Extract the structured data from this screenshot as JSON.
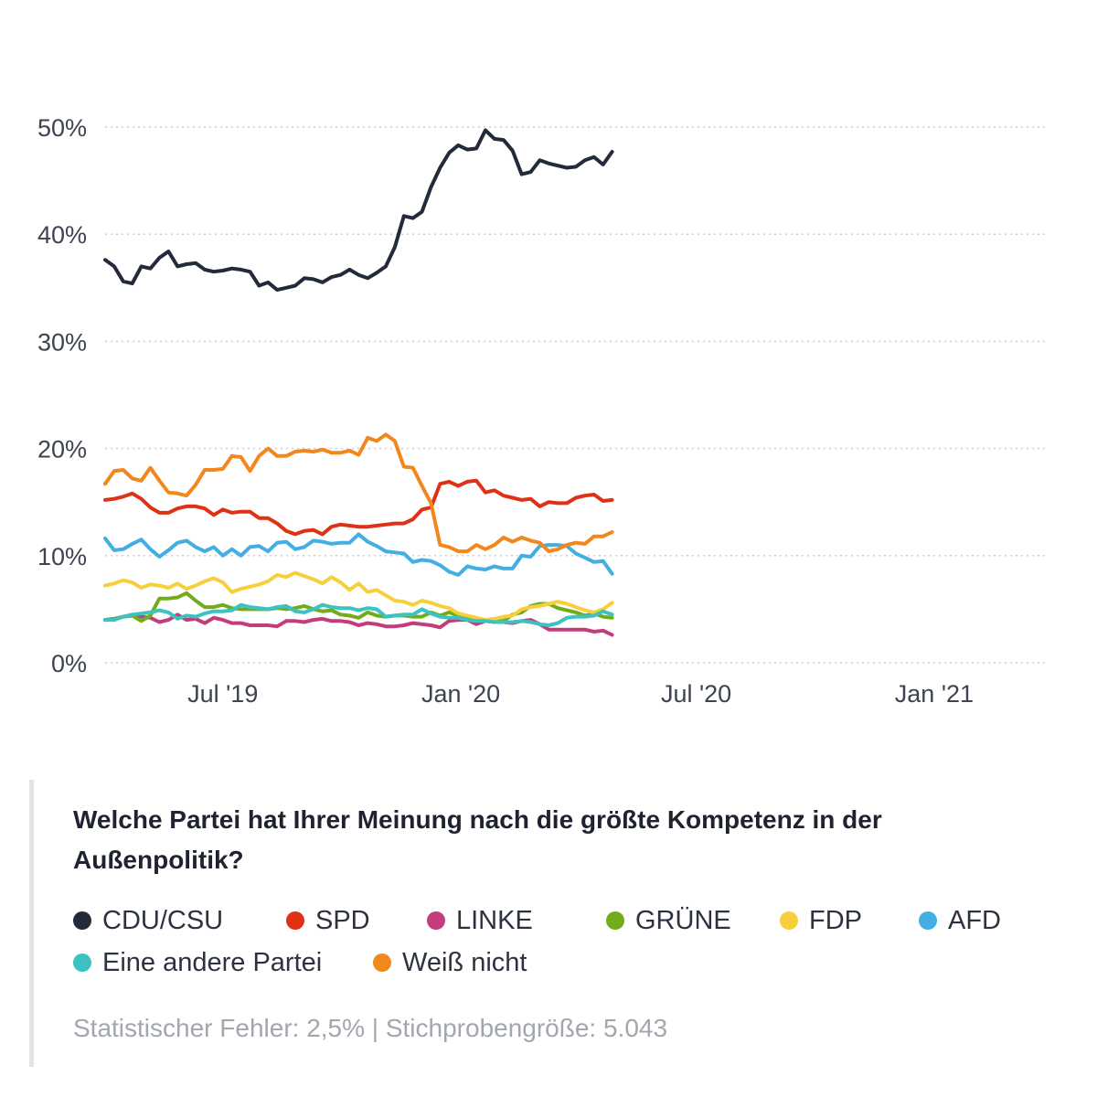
{
  "chart_data": {
    "type": "line",
    "title": "Welche Partei hat Ihrer Meinung nach die größte Kompetenz in der Außenpolitik?",
    "xlabel": "",
    "ylabel": "",
    "x_start": "2019-04-01",
    "x_step_days": 7,
    "x_ticks": [
      {
        "date": "2019-07-01",
        "label": "Jul '19"
      },
      {
        "date": "2020-01-01",
        "label": "Jan '20"
      },
      {
        "date": "2020-07-01",
        "label": "Jul '20"
      },
      {
        "date": "2021-01-01",
        "label": "Jan '21"
      }
    ],
    "x_range": [
      "2019-04-01",
      "2021-03-29"
    ],
    "y_ticks": [
      {
        "value": 0,
        "label": "0%"
      },
      {
        "value": 10,
        "label": "10%"
      },
      {
        "value": 20,
        "label": "20%"
      },
      {
        "value": 30,
        "label": "30%"
      },
      {
        "value": 40,
        "label": "40%"
      },
      {
        "value": 50,
        "label": "50%"
      }
    ],
    "ylim": [
      0,
      50
    ],
    "grid": "horizontal dotted",
    "legend_position": "bottom",
    "series": [
      {
        "name": "CDU/CSU",
        "color": "#232a3a",
        "values": [
          37.6,
          37,
          35.6,
          35.4,
          37,
          36.8,
          37.8,
          38.4,
          37,
          37.2,
          37.3,
          36.7,
          36.5,
          36.6,
          36.8,
          36.7,
          36.5,
          35.2,
          35.5,
          34.8,
          35,
          35.2,
          35.9,
          35.8,
          35.5,
          36,
          36.2,
          36.7,
          36.2,
          35.9,
          36.4,
          37,
          38.8,
          41.7,
          41.5,
          42.1,
          44.4,
          46.2,
          47.6,
          48.3,
          47.9,
          48,
          49.7,
          48.9,
          48.8,
          47.8,
          45.6,
          45.8,
          46.9,
          46.6,
          46.4,
          46.2,
          46.3,
          46.9,
          47.2,
          46.5,
          47.7
        ]
      },
      {
        "name": "SPD",
        "color": "#de3116",
        "values": [
          15.2,
          15.3,
          15.5,
          15.8,
          15.3,
          14.5,
          14,
          14,
          14.4,
          14.6,
          14.6,
          14.4,
          13.8,
          14.3,
          14,
          14.1,
          14.1,
          13.5,
          13.5,
          13,
          12.3,
          12,
          12.3,
          12.4,
          12,
          12.7,
          12.9,
          12.8,
          12.7,
          12.7,
          12.8,
          12.9,
          13,
          13,
          13.4,
          14.3,
          14.5,
          16.7,
          16.9,
          16.5,
          16.9,
          17,
          15.9,
          16.1,
          15.6,
          15.4,
          15.2,
          15.3,
          14.6,
          15,
          14.9,
          14.9,
          15.4,
          15.6,
          15.7,
          15.1,
          15.2
        ]
      },
      {
        "name": "LINKE",
        "color": "#c33d7c",
        "values": [
          4,
          4.1,
          4.3,
          4.4,
          4.3,
          4.2,
          3.8,
          4,
          4.5,
          4,
          4.1,
          3.7,
          4.2,
          4,
          3.7,
          3.7,
          3.5,
          3.5,
          3.5,
          3.4,
          3.9,
          3.9,
          3.8,
          4,
          4.1,
          3.9,
          3.9,
          3.8,
          3.5,
          3.7,
          3.6,
          3.4,
          3.4,
          3.5,
          3.7,
          3.6,
          3.5,
          3.3,
          3.9,
          4,
          4,
          3.6,
          3.9,
          3.8,
          3.8,
          3.7,
          3.9,
          4,
          3.6,
          3.1,
          3.1,
          3.1,
          3.1,
          3.1,
          2.9,
          3,
          2.6
        ]
      },
      {
        "name": "GRÜNE",
        "color": "#72ac1b",
        "values": [
          4,
          4.1,
          4.3,
          4.4,
          3.9,
          4.4,
          6,
          6,
          6.1,
          6.5,
          5.8,
          5.2,
          5.2,
          5.4,
          5.1,
          5,
          5,
          5,
          5,
          5.1,
          5,
          5.1,
          5.3,
          5,
          4.8,
          4.9,
          4.5,
          4.4,
          4.2,
          4.7,
          4.4,
          4.3,
          4.4,
          4.4,
          4.3,
          4.3,
          4.7,
          4.4,
          4.7,
          4.4,
          4.3,
          4.1,
          4,
          3.9,
          3.9,
          4.5,
          4.7,
          5.3,
          5.5,
          5.5,
          5.1,
          4.9,
          4.7,
          4.4,
          4.6,
          4.3,
          4.2
        ]
      },
      {
        "name": "FDP",
        "color": "#f7cf3c",
        "values": [
          7.2,
          7.4,
          7.7,
          7.5,
          7,
          7.3,
          7.2,
          7,
          7.4,
          6.9,
          7.2,
          7.6,
          7.9,
          7.5,
          6.6,
          6.9,
          7.1,
          7.3,
          7.6,
          8.2,
          8,
          8.4,
          8.1,
          7.8,
          7.4,
          8,
          7.5,
          6.8,
          7.4,
          6.6,
          6.8,
          6.3,
          5.8,
          5.7,
          5.4,
          5.8,
          5.6,
          5.3,
          5.1,
          4.6,
          4.4,
          4.2,
          4,
          4.1,
          4.3,
          4.4,
          5,
          5.2,
          5.3,
          5.5,
          5.7,
          5.5,
          5.2,
          4.9,
          4.7,
          5,
          5.6
        ]
      },
      {
        "name": "AFD",
        "color": "#43aee2",
        "values": [
          11.6,
          10.5,
          10.6,
          11.1,
          11.5,
          10.6,
          9.9,
          10.5,
          11.2,
          11.4,
          10.8,
          10.4,
          10.8,
          10,
          10.6,
          10,
          10.8,
          10.9,
          10.4,
          11.2,
          11.3,
          10.6,
          10.8,
          11.4,
          11.3,
          11.1,
          11.2,
          11.2,
          12,
          11.3,
          10.9,
          10.4,
          10.3,
          10.2,
          9.4,
          9.6,
          9.5,
          9.1,
          8.5,
          8.2,
          9,
          8.8,
          8.7,
          9,
          8.8,
          8.8,
          10,
          9.9,
          10.9,
          11,
          11,
          10.9,
          10.2,
          9.8,
          9.4,
          9.5,
          8.3
        ]
      },
      {
        "name": "Eine andere Partei",
        "color": "#3cc2c0",
        "values": [
          4,
          4,
          4.3,
          4.5,
          4.6,
          4.7,
          4.9,
          4.7,
          4.1,
          4.4,
          4.3,
          4.6,
          4.8,
          4.8,
          4.9,
          5.4,
          5.2,
          5.1,
          5,
          5.2,
          5.3,
          4.8,
          4.7,
          5,
          5.4,
          5.2,
          5.1,
          5.1,
          4.9,
          5.1,
          5,
          4.3,
          4.4,
          4.5,
          4.5,
          5,
          4.6,
          4.3,
          4.2,
          4.2,
          4,
          3.9,
          3.9,
          3.8,
          3.8,
          3.8,
          3.9,
          3.8,
          3.6,
          3.5,
          3.7,
          4.2,
          4.3,
          4.3,
          4.4,
          4.8,
          4.5
        ]
      },
      {
        "name": "Weiß nicht",
        "color": "#f2871e",
        "values": [
          16.7,
          17.9,
          18,
          17.2,
          17,
          18.2,
          17,
          15.9,
          15.8,
          15.6,
          16.6,
          18,
          18,
          18.1,
          19.3,
          19.2,
          17.9,
          19.3,
          20,
          19.3,
          19.3,
          19.7,
          19.8,
          19.7,
          19.9,
          19.6,
          19.6,
          19.8,
          19.4,
          21,
          20.7,
          21.3,
          20.7,
          18.3,
          18.2,
          16.5,
          14.9,
          11,
          10.8,
          10.4,
          10.4,
          11,
          10.6,
          11,
          11.7,
          11.3,
          11.7,
          11.4,
          11.2,
          10.4,
          10.6,
          11,
          11.2,
          11.1,
          11.8,
          11.8,
          12.2
        ]
      }
    ]
  },
  "info": {
    "question": "Welche Partei hat Ihrer Meinung nach die größte Kompetenz in der Außenpolitik?",
    "footnote": "Statistischer Fehler: 2,5%  | Stichprobengröße: 5.043"
  },
  "legend": [
    {
      "label": "CDU/CSU",
      "color": "#232a3a"
    },
    {
      "label": "SPD",
      "color": "#de3116"
    },
    {
      "label": "LINKE",
      "color": "#c33d7c"
    },
    {
      "label": "GRÜNE",
      "color": "#72ac1b"
    },
    {
      "label": "FDP",
      "color": "#f7cf3c"
    },
    {
      "label": "AFD",
      "color": "#43aee2"
    },
    {
      "label": "Eine andere Partei",
      "color": "#3cc2c0"
    },
    {
      "label": "Weiß nicht",
      "color": "#f2871e"
    }
  ]
}
